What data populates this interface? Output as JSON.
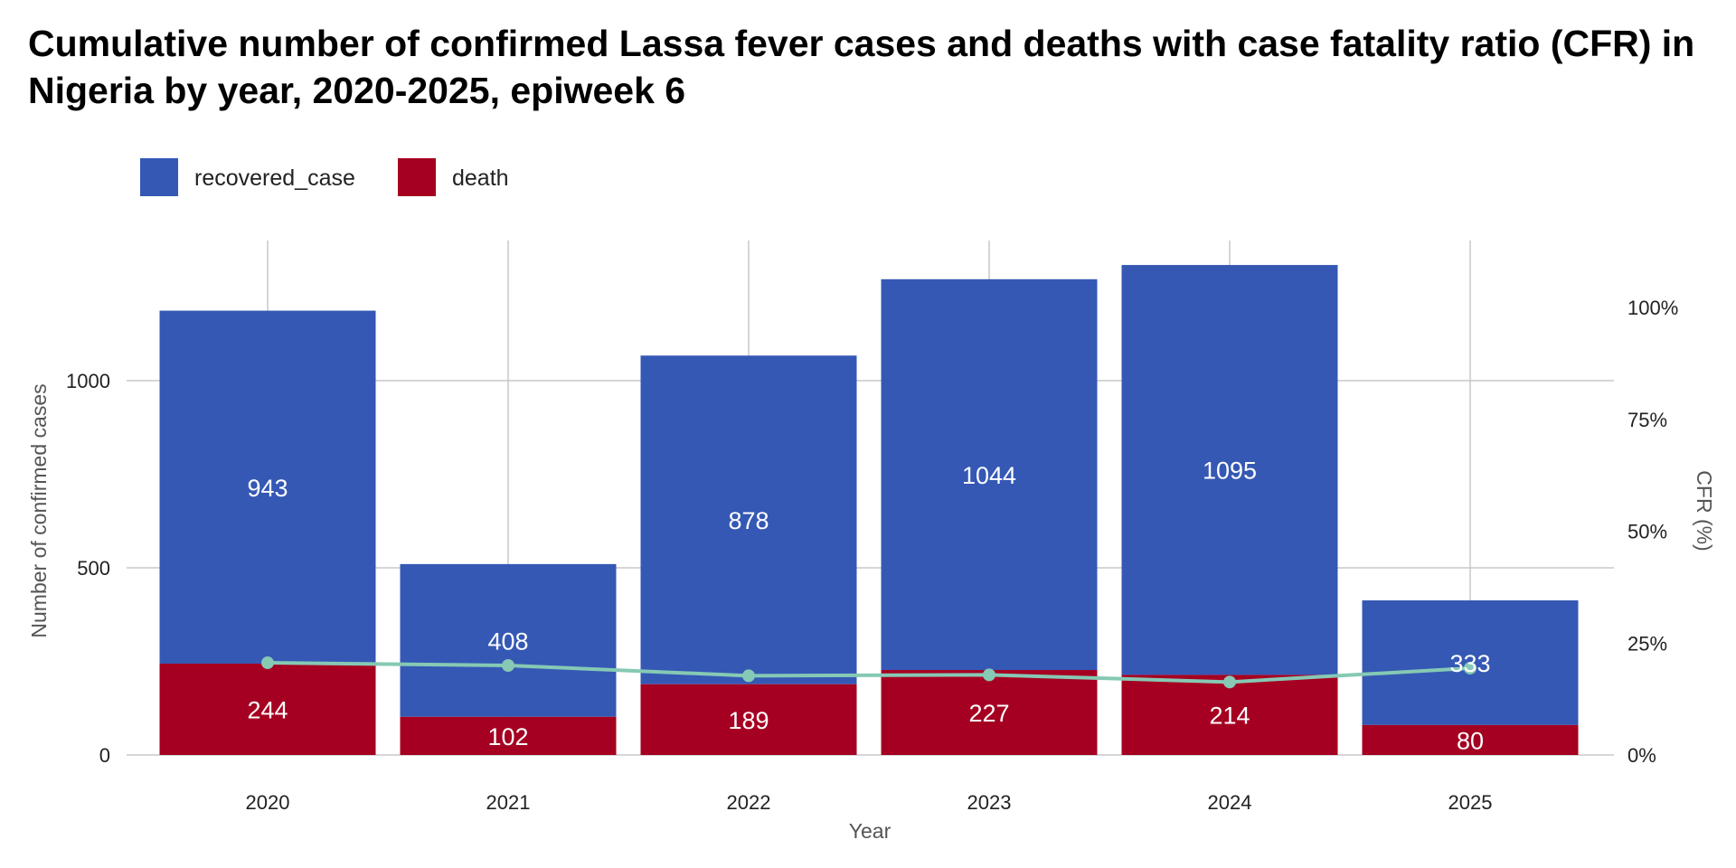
{
  "chart_title": "Cumulative number of confirmed Lassa fever cases and deaths with case fatality ratio (CFR) in Nigeria by year, 2020-2025, epiweek 6",
  "chart_data": {
    "type": "bar",
    "stacked": true,
    "title": "Cumulative number of confirmed Lassa fever cases and deaths with case fatality ratio (CFR) in Nigeria by year, 2020-2025, epiweek 6",
    "xlabel": "Year",
    "ylabel": "Number of confirmed cases",
    "y2label": "CFR (%)",
    "categories": [
      "2020",
      "2021",
      "2022",
      "2023",
      "2024",
      "2025"
    ],
    "series": [
      {
        "name": "death",
        "values": [
          244,
          102,
          189,
          227,
          214,
          80
        ],
        "color": "#A50021"
      },
      {
        "name": "recovered_case",
        "values": [
          943,
          408,
          878,
          1044,
          1095,
          333
        ],
        "color": "#3558B4"
      }
    ],
    "line_series": {
      "values": [
        20.6,
        20.0,
        17.7,
        17.9,
        16.3,
        19.4
      ],
      "axis": "right",
      "color": "#86C9B4"
    },
    "ylim": [
      0,
      1400
    ],
    "yticks": [
      0,
      500,
      1000
    ],
    "ytick_labels": [
      "0",
      "500",
      "1000"
    ],
    "y2lim": [
      0,
      100
    ],
    "y2ticks": [
      0,
      25,
      50,
      75,
      100
    ],
    "y2tick_labels": [
      "0%",
      "25%",
      "50%",
      "75%",
      "100%"
    ],
    "legend": {
      "position": "top-left",
      "items": [
        {
          "label": "recovered_case",
          "color": "#3558B4"
        },
        {
          "label": "death",
          "color": "#A50021"
        }
      ]
    },
    "grid": true
  }
}
